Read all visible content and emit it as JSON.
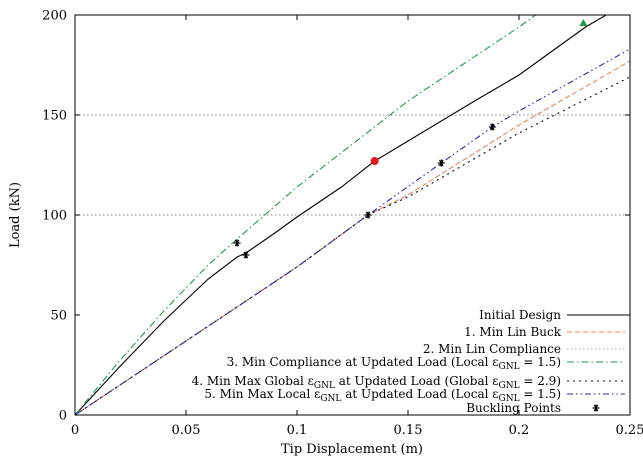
{
  "chart_data": {
    "type": "line",
    "xlabel": "Tip Displacement (m)",
    "ylabel": "Load (kN)",
    "xlim": [
      0,
      0.25
    ],
    "ylim": [
      0,
      200
    ],
    "x_ticks": [
      0,
      0.05,
      0.1,
      0.15,
      0.2,
      0.25
    ],
    "x_tick_labels": [
      "0",
      "0.05",
      "0.1",
      "0.15",
      "0.2",
      "0.25"
    ],
    "y_ticks": [
      0,
      50,
      100,
      150,
      200
    ],
    "y_tick_labels": [
      "0",
      "50",
      "100",
      "150",
      "200"
    ],
    "grid": "horizontal dotted at 100 and 150",
    "legend_position": "bottom-right",
    "series": [
      {
        "name": "Initial Design",
        "color": "#000000",
        "dash": "solid",
        "x": [
          0,
          0.02,
          0.04,
          0.06,
          0.073,
          0.077,
          0.09,
          0.1,
          0.12,
          0.135,
          0.15,
          0.18,
          0.2,
          0.23,
          0.25
        ],
        "y": [
          0,
          24,
          47,
          68,
          79,
          81,
          91,
          99,
          114,
          127,
          137,
          157,
          170,
          194,
          207
        ]
      },
      {
        "name": "1. Min Lin Buck",
        "color": "#ff7f3f",
        "dash": "dashed",
        "x": [
          0,
          0.05,
          0.1,
          0.132,
          0.15,
          0.2,
          0.25
        ],
        "y": [
          0,
          37,
          74,
          100,
          110,
          145,
          177
        ]
      },
      {
        "name": "2. Min Lin Compliance",
        "color": "#aaaaaa",
        "dash": "dotted",
        "x": [
          0,
          0.05,
          0.1,
          0.132,
          0.15,
          0.2,
          0.25
        ],
        "y": [
          0,
          37,
          74,
          100,
          110,
          145,
          177
        ]
      },
      {
        "name": "3. Min Compliance at Updated Load (Local ε_GNL = 1.5)",
        "color": "#1f9a4a",
        "dash": "dash-dot",
        "x": [
          0,
          0.02,
          0.04,
          0.06,
          0.073,
          0.1,
          0.15,
          0.2,
          0.21
        ],
        "y": [
          0,
          27,
          52,
          75,
          88,
          114,
          157,
          194,
          202
        ]
      },
      {
        "name": "4. Min Max Global ε_GNL at Updated Load (Global ε_GNL = 2.9)",
        "color": "#111111",
        "dash": "sparse-dotted",
        "x": [
          0,
          0.05,
          0.1,
          0.132,
          0.15,
          0.2,
          0.25
        ],
        "y": [
          0,
          37,
          74,
          100,
          109,
          141,
          169
        ]
      },
      {
        "name": "5. Min Max Local ε_GNL at Updated Load (Local ε_GNL = 1.5)",
        "color": "#2828aa",
        "dash": "dash-dot-dot",
        "x": [
          0,
          0.05,
          0.1,
          0.132,
          0.165,
          0.188,
          0.2,
          0.25
        ],
        "y": [
          0,
          37,
          74,
          100,
          126,
          144,
          152,
          183
        ]
      }
    ],
    "buckling_points": {
      "name": "Buckling Points",
      "marker": "asterisk",
      "color": "#000000",
      "points": [
        {
          "x": 0.073,
          "y": 86
        },
        {
          "x": 0.077,
          "y": 80
        },
        {
          "x": 0.132,
          "y": 100
        },
        {
          "x": 0.165,
          "y": 126
        },
        {
          "x": 0.188,
          "y": 144
        }
      ]
    },
    "special_markers": [
      {
        "x": 0.135,
        "y": 127,
        "shape": "circle",
        "color": "#e8141c"
      },
      {
        "x": 0.229,
        "y": 196,
        "shape": "triangle",
        "color": "#1f9a4a"
      }
    ]
  },
  "legend": [
    {
      "id": "s0",
      "main": "Initial Design",
      "sub": "",
      "tail": ""
    },
    {
      "id": "s1",
      "main": "1. Min Lin Buck",
      "sub": "",
      "tail": ""
    },
    {
      "id": "s2",
      "main": "2. Min Lin Compliance",
      "sub": "",
      "tail": ""
    },
    {
      "id": "s3",
      "main": "3. Min Compliance at Updated Load (Local ε",
      "sub": "GNL",
      "tail": " = 1.5)"
    },
    {
      "id": "s4",
      "main": "4. Min Max Global ε",
      "sub": "GNL",
      "tail": " at Updated Load (Global ε",
      "sub2": "GNL",
      "tail2": " = 2.9)"
    },
    {
      "id": "s5",
      "main": "5. Min Max Local ε",
      "sub": "GNL",
      "tail": " at Updated Load (Local ε",
      "sub2": "GNL",
      "tail2": " = 1.5)"
    },
    {
      "id": "bp",
      "main": "Buckling Points",
      "sub": "",
      "tail": ""
    }
  ]
}
